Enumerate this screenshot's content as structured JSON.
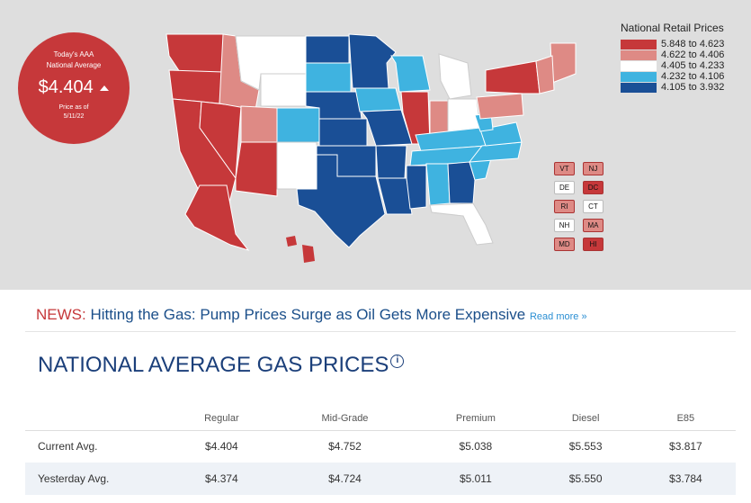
{
  "badge": {
    "line1": "Today's AAA",
    "line2": "National Average",
    "price": "$4.404",
    "trend_icon": "triangle-up-icon",
    "date_line1": "Price as of",
    "date_line2": "5/11/22"
  },
  "legend": {
    "title": "National Retail Prices",
    "items": [
      {
        "range": "5.848 to 4.623",
        "color": "#c6383a"
      },
      {
        "range": "4.622 to 4.406",
        "color": "#de8a85"
      },
      {
        "range": "4.405 to 4.233",
        "color": "#ffffff"
      },
      {
        "range": "4.232 to 4.106",
        "color": "#3fb3e0"
      },
      {
        "range": "4.105 to 3.932",
        "color": "#1a4f96"
      }
    ]
  },
  "small_states": [
    {
      "code": "VT",
      "color": "#de8a85"
    },
    {
      "code": "NJ",
      "color": "#de8a85"
    },
    {
      "code": "DE",
      "color": "#ffffff"
    },
    {
      "code": "DC",
      "color": "#c6383a"
    },
    {
      "code": "RI",
      "color": "#de8a85"
    },
    {
      "code": "CT",
      "color": "#ffffff"
    },
    {
      "code": "NH",
      "color": "#ffffff"
    },
    {
      "code": "MA",
      "color": "#de8a85"
    },
    {
      "code": "MD",
      "color": "#de8a85"
    },
    {
      "code": "HI",
      "color": "#c6383a"
    }
  ],
  "news": {
    "label": "NEWS:",
    "headline": "Hitting the Gas: Pump Prices Surge as Oil Gets More Expensive",
    "read_more": "Read more »"
  },
  "section_title": "NATIONAL AVERAGE GAS PRICES",
  "info_icon": "info-icon",
  "table": {
    "headers": [
      "",
      "Regular",
      "Mid-Grade",
      "Premium",
      "Diesel",
      "E85"
    ],
    "rows": [
      {
        "label": "Current Avg.",
        "values": [
          "$4.404",
          "$4.752",
          "$5.038",
          "$5.553",
          "$3.817"
        ]
      },
      {
        "label": "Yesterday Avg.",
        "values": [
          "$4.374",
          "$4.724",
          "$5.011",
          "$5.550",
          "$3.784"
        ]
      }
    ]
  }
}
